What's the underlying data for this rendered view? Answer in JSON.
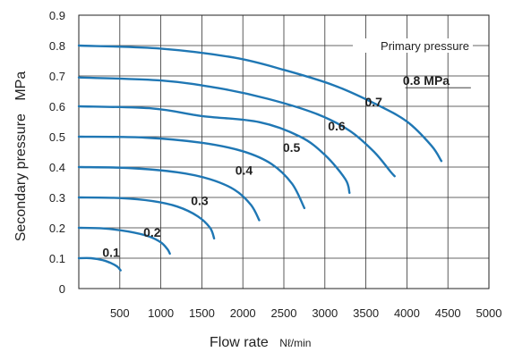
{
  "chart_data": {
    "type": "line",
    "xlabel": "Flow rate",
    "xunit": "Nℓ/min",
    "ylabel": "Secondary pressure",
    "yunit": "MPa",
    "xlim": [
      0,
      5000
    ],
    "ylim": [
      0,
      0.9
    ],
    "xticks": [
      "500",
      "1000",
      "1500",
      "2000",
      "2500",
      "3000",
      "3500",
      "4000",
      "4500",
      "5000"
    ],
    "yticks": [
      "0",
      "0.1",
      "0.2",
      "0.3",
      "0.4",
      "0.5",
      "0.6",
      "0.7",
      "0.8",
      "0.9"
    ],
    "grid": true,
    "annotation": "Primary pressure",
    "label_unit": "MPa",
    "series": [
      {
        "name": "0.1",
        "points": [
          [
            0,
            0.1
          ],
          [
            150,
            0.1
          ],
          [
            300,
            0.093
          ],
          [
            400,
            0.083
          ],
          [
            470,
            0.072
          ],
          [
            510,
            0.06
          ]
        ]
      },
      {
        "name": "0.2",
        "points": [
          [
            0,
            0.2
          ],
          [
            300,
            0.198
          ],
          [
            600,
            0.188
          ],
          [
            850,
            0.172
          ],
          [
            1000,
            0.152
          ],
          [
            1080,
            0.13
          ],
          [
            1110,
            0.115
          ]
        ]
      },
      {
        "name": "0.3",
        "points": [
          [
            0,
            0.3
          ],
          [
            500,
            0.298
          ],
          [
            900,
            0.288
          ],
          [
            1200,
            0.27
          ],
          [
            1450,
            0.238
          ],
          [
            1600,
            0.2
          ],
          [
            1650,
            0.165
          ]
        ]
      },
      {
        "name": "0.4",
        "points": [
          [
            0,
            0.4
          ],
          [
            600,
            0.397
          ],
          [
            1200,
            0.383
          ],
          [
            1600,
            0.36
          ],
          [
            1900,
            0.325
          ],
          [
            2100,
            0.275
          ],
          [
            2200,
            0.225
          ]
        ]
      },
      {
        "name": "0.5",
        "points": [
          [
            0,
            0.5
          ],
          [
            800,
            0.497
          ],
          [
            1500,
            0.48
          ],
          [
            2000,
            0.452
          ],
          [
            2350,
            0.41
          ],
          [
            2600,
            0.345
          ],
          [
            2750,
            0.265
          ]
        ]
      },
      {
        "name": "0.6",
        "points": [
          [
            0,
            0.6
          ],
          [
            900,
            0.593
          ],
          [
            1500,
            0.568
          ],
          [
            2200,
            0.548
          ],
          [
            2700,
            0.5
          ],
          [
            3000,
            0.44
          ],
          [
            3250,
            0.36
          ],
          [
            3300,
            0.315
          ]
        ]
      },
      {
        "name": "0.7",
        "points": [
          [
            0,
            0.695
          ],
          [
            1000,
            0.685
          ],
          [
            1700,
            0.66
          ],
          [
            2300,
            0.625
          ],
          [
            2900,
            0.575
          ],
          [
            3300,
            0.52
          ],
          [
            3600,
            0.45
          ],
          [
            3800,
            0.385
          ],
          [
            3850,
            0.37
          ]
        ]
      },
      {
        "name": "0.8",
        "points": [
          [
            0,
            0.8
          ],
          [
            1000,
            0.79
          ],
          [
            1900,
            0.76
          ],
          [
            2500,
            0.72
          ],
          [
            3100,
            0.67
          ],
          [
            3600,
            0.61
          ],
          [
            4000,
            0.55
          ],
          [
            4300,
            0.47
          ],
          [
            4420,
            0.42
          ]
        ]
      }
    ]
  }
}
